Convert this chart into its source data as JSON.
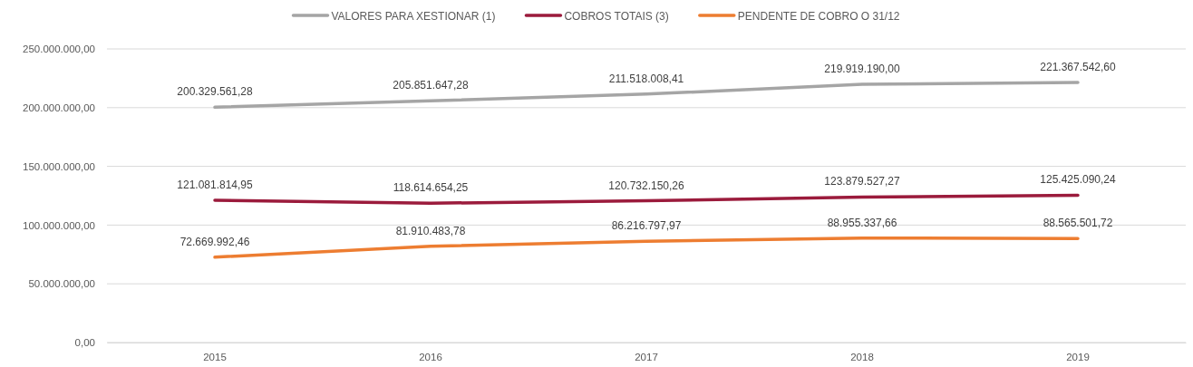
{
  "chart_data": {
    "type": "line",
    "categories": [
      "2015",
      "2016",
      "2017",
      "2018",
      "2019"
    ],
    "series": [
      {
        "name": "VALORES PARA XESTIONAR (1)",
        "color": "#a5a5a5",
        "values": [
          200329561.28,
          205851647.28,
          211518008.41,
          219919190.0,
          221367542.6
        ],
        "value_labels": [
          "200.329.561,28",
          "205.851.647,28",
          "211.518.008,41",
          "219.919.190,00",
          "221.367.542,60"
        ]
      },
      {
        "name": "COBROS TOTAIS (3)",
        "color": "#9b1b3c",
        "values": [
          121081814.95,
          118614654.25,
          120732150.26,
          123879527.27,
          125425090.24
        ],
        "value_labels": [
          "121.081.814,95",
          "118.614.654,25",
          "120.732.150,26",
          "123.879.527,27",
          "125.425.090,24"
        ]
      },
      {
        "name": "PENDENTE DE COBRO O 31/12",
        "color": "#ed7d31",
        "values": [
          72669992.46,
          81910483.78,
          86216797.97,
          88955337.66,
          88565501.72
        ],
        "value_labels": [
          "72.669.992,46",
          "81.910.483,78",
          "86.216.797,97",
          "88.955.337,66",
          "88.565.501,72"
        ]
      }
    ],
    "ylim": [
      0,
      250000000
    ],
    "yticks": [
      {
        "value": 0,
        "label": "0,00"
      },
      {
        "value": 50000000,
        "label": "50.000.000,00"
      },
      {
        "value": 100000000,
        "label": "100.000.000,00"
      },
      {
        "value": 150000000,
        "label": "150.000.000,00"
      },
      {
        "value": 200000000,
        "label": "200.000.000,00"
      },
      {
        "value": 250000000,
        "label": "250.000.000,00"
      }
    ],
    "grid": "y",
    "legend": "top",
    "marker": "none",
    "line_style": "solid"
  }
}
